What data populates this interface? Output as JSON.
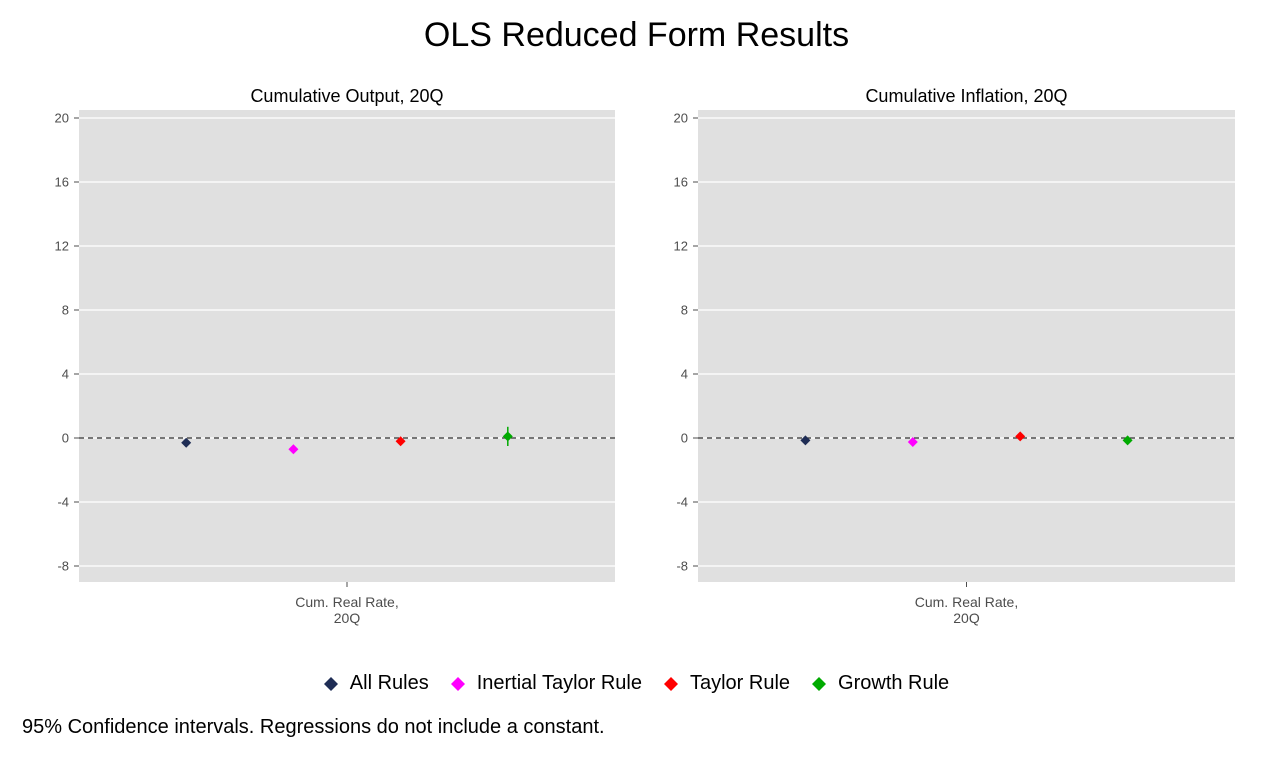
{
  "title": "OLS Reduced Form Results",
  "caption": "95% Confidence intervals. Regressions do not include a constant.",
  "legend": [
    {
      "name": "All Rules",
      "color": "#1f2d55"
    },
    {
      "name": "Inertial Taylor Rule",
      "color": "#ff00ff"
    },
    {
      "name": "Taylor Rule",
      "color": "#ff0000"
    },
    {
      "name": "Growth Rule",
      "color": "#00aa00"
    }
  ],
  "chart_data": [
    {
      "type": "scatter",
      "title": "Cumulative Output, 20Q",
      "category": [
        "Cum. Real Rate,",
        "20Q"
      ],
      "ylim": [
        -9,
        20.5
      ],
      "yticks": [
        -8,
        -4,
        0,
        4,
        8,
        12,
        16,
        20
      ],
      "reference_line": 0,
      "grid": true,
      "series": [
        {
          "name": "All Rules",
          "value": -0.3,
          "ci": [
            -0.4,
            -0.2
          ]
        },
        {
          "name": "Inertial Taylor Rule",
          "value": -0.7,
          "ci": [
            -0.8,
            -0.6
          ]
        },
        {
          "name": "Taylor Rule",
          "value": -0.2,
          "ci": [
            -0.3,
            -0.1
          ]
        },
        {
          "name": "Growth Rule",
          "value": 0.1,
          "ci": [
            -0.5,
            0.7
          ]
        }
      ]
    },
    {
      "type": "scatter",
      "title": "Cumulative Inflation, 20Q",
      "category": [
        "Cum. Real Rate,",
        "20Q"
      ],
      "ylim": [
        -9,
        20.5
      ],
      "yticks": [
        -8,
        -4,
        0,
        4,
        8,
        12,
        16,
        20
      ],
      "reference_line": 0,
      "grid": true,
      "series": [
        {
          "name": "All Rules",
          "value": -0.15,
          "ci": [
            -0.2,
            -0.1
          ]
        },
        {
          "name": "Inertial Taylor Rule",
          "value": -0.25,
          "ci": [
            -0.3,
            -0.2
          ]
        },
        {
          "name": "Taylor Rule",
          "value": 0.1,
          "ci": [
            0.05,
            0.15
          ]
        },
        {
          "name": "Growth Rule",
          "value": -0.15,
          "ci": [
            -0.25,
            -0.05
          ]
        }
      ]
    }
  ]
}
